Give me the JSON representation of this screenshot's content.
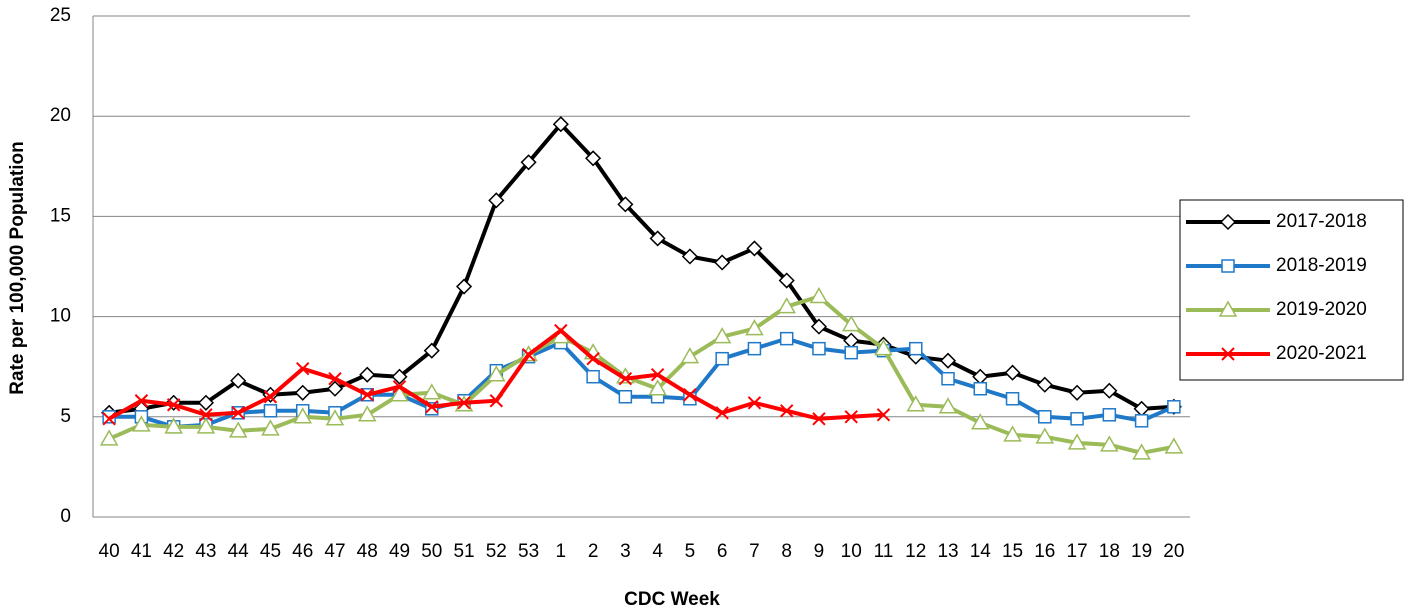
{
  "chart_data": {
    "type": "line",
    "x_label": "CDC Week",
    "y_label": "Rate per 100,000 Population",
    "categories": [
      "40",
      "41",
      "42",
      "43",
      "44",
      "45",
      "46",
      "47",
      "48",
      "49",
      "50",
      "51",
      "52",
      "53",
      "1",
      "2",
      "3",
      "4",
      "5",
      "6",
      "7",
      "8",
      "9",
      "10",
      "11",
      "12",
      "13",
      "14",
      "15",
      "16",
      "17",
      "18",
      "19",
      "20"
    ],
    "ylim": [
      0,
      25
    ],
    "yticks": [
      0,
      5,
      10,
      15,
      20,
      25
    ],
    "grid": true,
    "legend": "right",
    "series": [
      {
        "name": "2017-2018",
        "color": "#000000",
        "marker": "diamond",
        "values": [
          5.2,
          5.4,
          5.7,
          5.7,
          6.8,
          6.1,
          6.2,
          6.4,
          7.1,
          7.0,
          8.3,
          11.5,
          15.8,
          17.7,
          19.6,
          17.9,
          15.6,
          13.9,
          13.0,
          12.7,
          13.4,
          11.8,
          9.5,
          8.8,
          8.6,
          8.0,
          7.8,
          7.0,
          7.2,
          6.6,
          6.2,
          6.3,
          5.4,
          5.5
        ]
      },
      {
        "name": "2018-2019",
        "color": "#1f78c8",
        "marker": "square",
        "values": [
          5.0,
          5.0,
          4.5,
          4.6,
          5.2,
          5.3,
          5.3,
          5.2,
          6.1,
          6.1,
          5.4,
          5.8,
          7.3,
          8.0,
          8.7,
          7.0,
          6.0,
          6.0,
          5.9,
          7.9,
          8.4,
          8.9,
          8.4,
          8.2,
          8.3,
          8.4,
          6.9,
          6.4,
          5.9,
          5.0,
          4.9,
          5.1,
          4.8,
          5.5
        ]
      },
      {
        "name": "2019-2020",
        "color": "#9bbb59",
        "marker": "triangle",
        "values": [
          3.9,
          4.6,
          4.5,
          4.5,
          4.3,
          4.4,
          5.0,
          4.9,
          5.1,
          6.1,
          6.2,
          5.6,
          7.1,
          8.1,
          9.0,
          8.2,
          7.0,
          6.4,
          8.0,
          9.0,
          9.4,
          10.5,
          11.0,
          9.6,
          8.4,
          5.6,
          5.5,
          4.7,
          4.1,
          4.0,
          3.7,
          3.6,
          3.2,
          3.5
        ]
      },
      {
        "name": "2020-2021",
        "color": "#ff0000",
        "marker": "x",
        "values": [
          4.9,
          5.8,
          5.6,
          5.1,
          5.2,
          6.0,
          7.4,
          6.9,
          6.1,
          6.5,
          5.5,
          5.7,
          5.8,
          8.1,
          9.3,
          7.9,
          6.9,
          7.1,
          6.1,
          5.2,
          5.7,
          5.3,
          4.9,
          5.0,
          5.1,
          null,
          null,
          null,
          null,
          null,
          null,
          null,
          null,
          null
        ]
      }
    ]
  }
}
